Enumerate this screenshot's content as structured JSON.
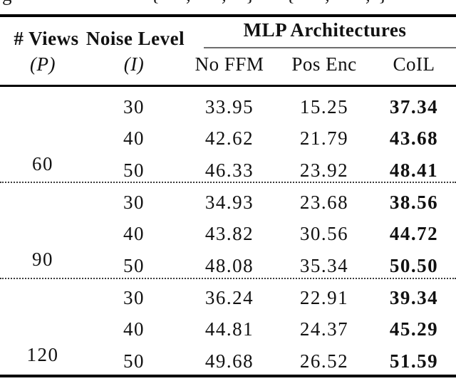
{
  "caption": {
    "fragments": [
      "g",
      "{",
      ",",
      ",",
      "}",
      "{",
      ",",
      ",",
      "}"
    ]
  },
  "header": {
    "col1_title": "# Views",
    "col1_sub": "(P)",
    "col2_title": "Noise Level",
    "col2_sub": "(I)",
    "group_title": "MLP Architectures",
    "sub_cols": [
      "No FFM",
      "Pos Enc",
      "CoIL"
    ]
  },
  "table": {
    "groups": [
      {
        "views": "60",
        "rows": [
          {
            "noise": "30",
            "no_ffm": "33.95",
            "pos_enc": "15.25",
            "coil": "37.34"
          },
          {
            "noise": "40",
            "no_ffm": "42.62",
            "pos_enc": "21.79",
            "coil": "43.68"
          },
          {
            "noise": "50",
            "no_ffm": "46.33",
            "pos_enc": "23.92",
            "coil": "48.41"
          }
        ]
      },
      {
        "views": "90",
        "rows": [
          {
            "noise": "30",
            "no_ffm": "34.93",
            "pos_enc": "23.68",
            "coil": "38.56"
          },
          {
            "noise": "40",
            "no_ffm": "43.82",
            "pos_enc": "30.56",
            "coil": "44.72"
          },
          {
            "noise": "50",
            "no_ffm": "48.08",
            "pos_enc": "35.34",
            "coil": "50.50"
          }
        ]
      },
      {
        "views": "120",
        "rows": [
          {
            "noise": "30",
            "no_ffm": "36.24",
            "pos_enc": "22.91",
            "coil": "39.34"
          },
          {
            "noise": "40",
            "no_ffm": "44.81",
            "pos_enc": "24.37",
            "coil": "45.29"
          },
          {
            "noise": "50",
            "no_ffm": "49.68",
            "pos_enc": "26.52",
            "coil": "51.59"
          }
        ]
      }
    ]
  },
  "colors": {
    "text": "#111111",
    "heavy_rule": "#000000",
    "mid_rule_gray": "#6e6e6e"
  }
}
